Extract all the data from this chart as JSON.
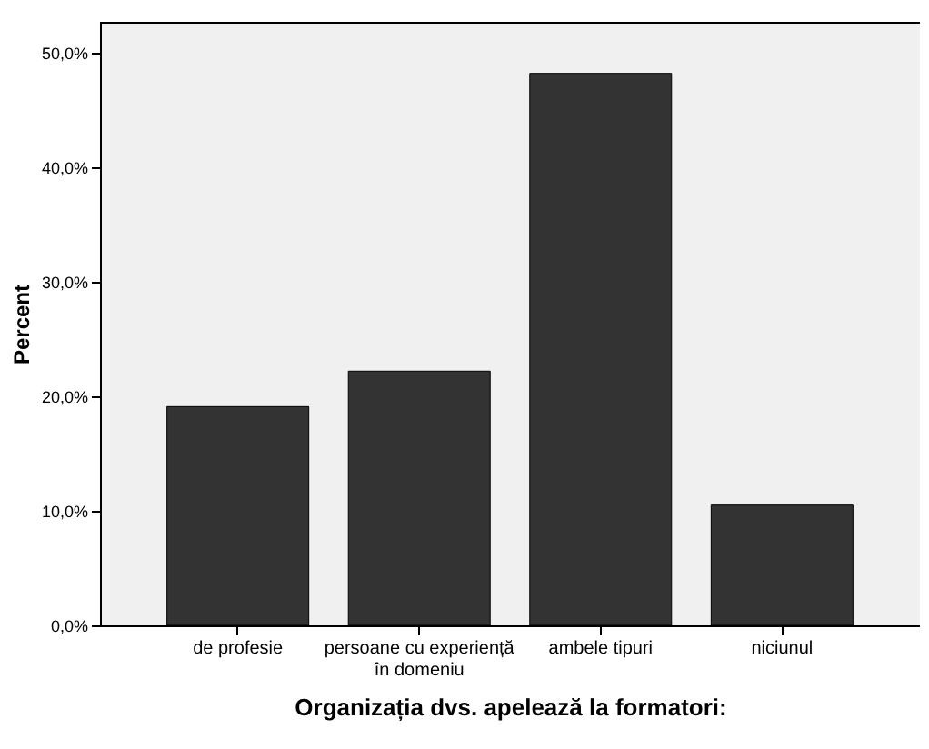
{
  "chart_data": {
    "type": "bar",
    "xlabel": "Organizația  dvs. apelează la formatori:",
    "ylabel": "Percent",
    "categories": [
      "de profesie",
      "persoane cu experiență\nîn domeniu",
      "ambele tipuri",
      "niciunul"
    ],
    "values": [
      19.1,
      22.2,
      48.2,
      10.5
    ],
    "color": "#333333",
    "ylim": [
      0,
      52.7
    ],
    "yticks": [
      {
        "value": 0,
        "label": "0,0%"
      },
      {
        "value": 10,
        "label": "10,0%"
      },
      {
        "value": 20,
        "label": "20,0%"
      },
      {
        "value": 30,
        "label": "30,0%"
      },
      {
        "value": 40,
        "label": "40,0%"
      },
      {
        "value": 50,
        "label": "50,0%"
      }
    ],
    "grid": false
  }
}
